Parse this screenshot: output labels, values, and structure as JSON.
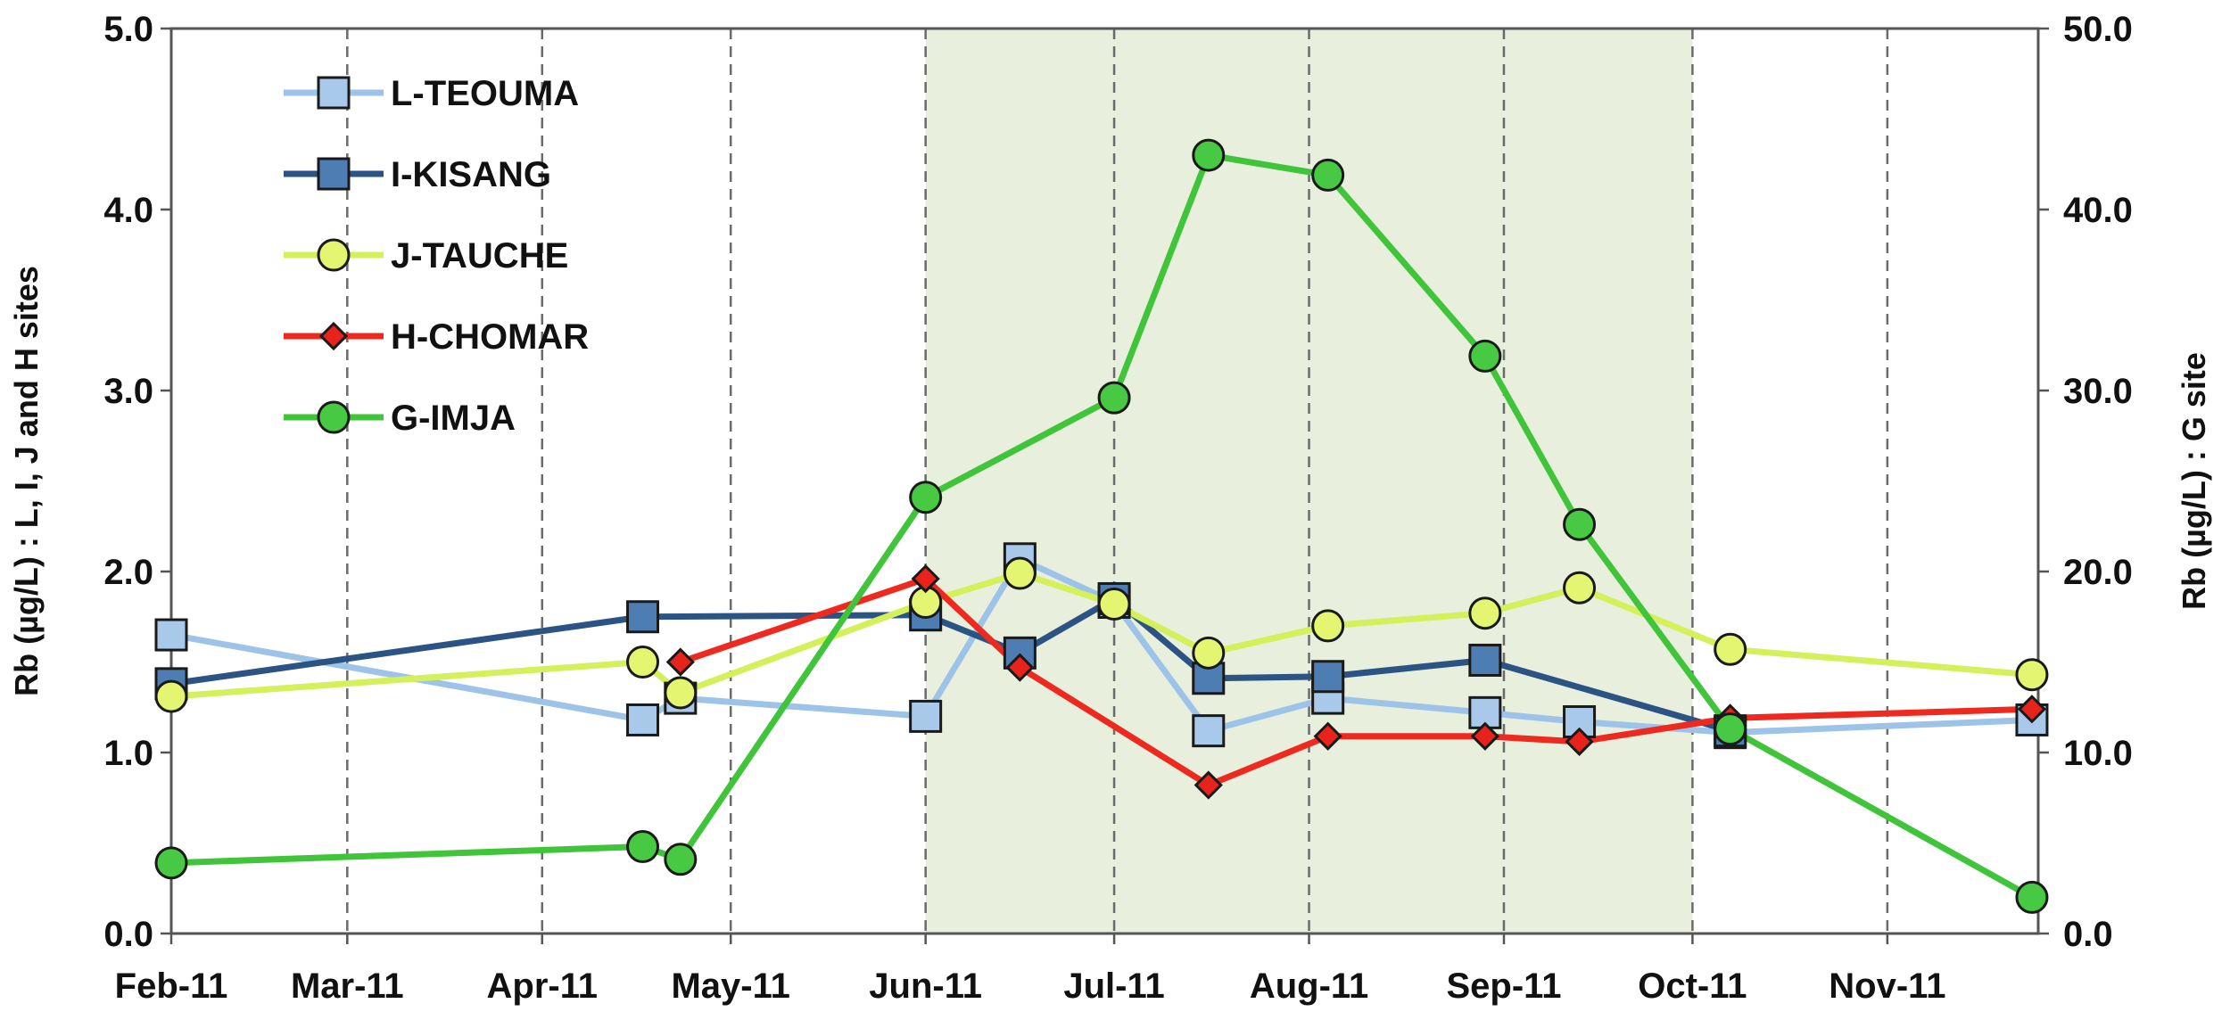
{
  "chart_data": {
    "type": "line",
    "x_axis": {
      "ticks": [
        "Feb-11",
        "Mar-11",
        "Apr-11",
        "May-11",
        "Jun-11",
        "Jul-11",
        "Aug-11",
        "Sep-11",
        "Oct-11",
        "Nov-11"
      ],
      "range": [
        "2011-02-01",
        "2011-11-25"
      ],
      "gridlines": "dashed vertical at each month"
    },
    "y_left": {
      "label": "Rb (µg/L) : L, I, J and H sites",
      "range": [
        0,
        5
      ],
      "ticks": [
        "0.0",
        "1.0",
        "2.0",
        "3.0",
        "4.0",
        "5.0"
      ]
    },
    "y_right": {
      "label": "Rb (µg/L) : G site",
      "range": [
        0,
        50
      ],
      "ticks": [
        "0.0",
        "10.0",
        "20.0",
        "30.0",
        "40.0",
        "50.0"
      ]
    },
    "shaded_period": {
      "start": "2011-06-01",
      "end": "2011-10-01",
      "color": "#e8efdc"
    },
    "legend_position": "top-left",
    "series": [
      {
        "name": "L-TEOUMA",
        "axis": "left",
        "marker": "square",
        "line_color": "#9ec3e8",
        "marker_fill": "#a9c9ea",
        "points": [
          [
            "2011-02-01",
            1.65
          ],
          [
            "2011-04-17",
            1.18
          ],
          [
            "2011-04-23",
            1.3
          ],
          [
            "2011-06-01",
            1.2
          ],
          [
            "2011-06-16",
            2.07
          ],
          [
            "2011-07-01",
            1.83
          ],
          [
            "2011-07-16",
            1.12
          ],
          [
            "2011-08-04",
            1.3
          ],
          [
            "2011-08-29",
            1.22
          ],
          [
            "2011-09-13",
            1.17
          ],
          [
            "2011-10-07",
            1.11
          ],
          [
            "2011-11-24",
            1.18
          ]
        ]
      },
      {
        "name": "I-KISANG",
        "axis": "left",
        "marker": "square",
        "line_color": "#2b5484",
        "marker_fill": "#4e7db4",
        "points": [
          [
            "2011-02-01",
            1.38
          ],
          [
            "2011-04-17",
            1.75
          ],
          [
            "2011-06-01",
            1.76
          ],
          [
            "2011-06-16",
            1.55
          ],
          [
            "2011-07-01",
            1.85
          ],
          [
            "2011-07-16",
            1.41
          ],
          [
            "2011-08-04",
            1.42
          ],
          [
            "2011-08-29",
            1.51
          ],
          [
            "2011-10-07",
            1.12
          ]
        ]
      },
      {
        "name": "J-TAUCHE",
        "axis": "left",
        "marker": "circle",
        "line_color": "#d4f05a",
        "marker_fill": "#e4f571",
        "points": [
          [
            "2011-02-01",
            1.31
          ],
          [
            "2011-04-17",
            1.5
          ],
          [
            "2011-04-23",
            1.33
          ],
          [
            "2011-06-01",
            1.83
          ],
          [
            "2011-06-16",
            1.99
          ],
          [
            "2011-07-01",
            1.82
          ],
          [
            "2011-07-16",
            1.55
          ],
          [
            "2011-08-04",
            1.7
          ],
          [
            "2011-08-29",
            1.77
          ],
          [
            "2011-09-13",
            1.91
          ],
          [
            "2011-10-07",
            1.57
          ],
          [
            "2011-11-24",
            1.43
          ]
        ]
      },
      {
        "name": "H-CHOMAR",
        "axis": "left",
        "marker": "diamond",
        "line_color": "#ee2a20",
        "marker_fill": "#e8231b",
        "points": [
          [
            "2011-04-23",
            1.5
          ],
          [
            "2011-06-01",
            1.96
          ],
          [
            "2011-06-16",
            1.47
          ],
          [
            "2011-07-16",
            0.82
          ],
          [
            "2011-08-04",
            1.09
          ],
          [
            "2011-08-29",
            1.09
          ],
          [
            "2011-09-13",
            1.06
          ],
          [
            "2011-10-07",
            1.19
          ],
          [
            "2011-11-24",
            1.24
          ]
        ]
      },
      {
        "name": "G-IMJA",
        "axis": "right",
        "marker": "circle",
        "line_color": "#3fc43a",
        "marker_fill": "#47c943",
        "points": [
          [
            "2011-02-01",
            3.9
          ],
          [
            "2011-04-17",
            4.8
          ],
          [
            "2011-04-23",
            4.1
          ],
          [
            "2011-06-01",
            24.1
          ],
          [
            "2011-07-01",
            29.6
          ],
          [
            "2011-07-16",
            43.0
          ],
          [
            "2011-08-04",
            41.9
          ],
          [
            "2011-08-29",
            31.9
          ],
          [
            "2011-09-13",
            22.6
          ],
          [
            "2011-10-07",
            11.3
          ],
          [
            "2011-11-24",
            2.0
          ]
        ]
      }
    ]
  }
}
